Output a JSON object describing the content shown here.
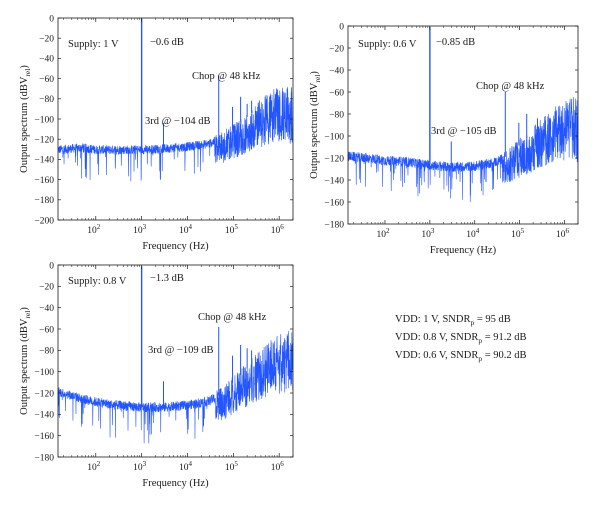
{
  "chart_data": [
    {
      "type": "line",
      "xlabel": "Frequency (Hz)",
      "ylabel": "Output spectrum (dBV",
      "ylabel_sub": "rel",
      "ylabel_end": ")",
      "xscale": "log",
      "xlim": [
        15,
        2000000
      ],
      "ylim": [
        -200,
        0
      ],
      "yticks": [
        "0",
        "−20",
        "−40",
        "−60",
        "−80",
        "−100",
        "−120",
        "−140",
        "−160",
        "−180",
        "−200"
      ],
      "xticks": [
        {
          "base": "10",
          "exp": "2"
        },
        {
          "base": "10",
          "exp": "3"
        },
        {
          "base": "10",
          "exp": "4"
        },
        {
          "base": "10",
          "exp": "5"
        },
        {
          "base": "10",
          "exp": "6"
        }
      ],
      "color": "#2255ff",
      "annotations": [
        "Supply: 1 V",
        "−0.6 dB",
        "Chop @ 48 kHz",
        "3rd @ −104 dB"
      ],
      "series": [
        {
          "floor": [
            [
              15,
              -130
            ],
            [
              50,
              -128
            ],
            [
              100,
              -130
            ],
            [
              300,
              -130
            ],
            [
              1000,
              -130
            ],
            [
              3000,
              -129
            ],
            [
              10000,
              -127
            ],
            [
              30000,
              -124
            ],
            [
              60000,
              -118
            ],
            [
              100000,
              -110
            ],
            [
              200000,
              -98
            ],
            [
              400000,
              -86
            ],
            [
              800000,
              -75
            ],
            [
              1400000,
              -70
            ]
          ],
          "peak": {
            "x": 1000,
            "y": -0.6
          },
          "spurs": [
            {
              "x": 3000,
              "y": -104
            },
            {
              "x": 48000,
              "y": -57
            },
            {
              "x": 96000,
              "y": -88
            },
            {
              "x": 144000,
              "y": -78
            },
            {
              "x": 200000,
              "y": -85
            },
            {
              "x": 250000,
              "y": -82
            }
          ]
        }
      ]
    },
    {
      "type": "line",
      "xlabel": "Frequency (Hz)",
      "ylabel": "Output spectrum (dBV",
      "ylabel_sub": "rel",
      "ylabel_end": ")",
      "xscale": "log",
      "xlim": [
        15,
        2000000
      ],
      "ylim": [
        -180,
        0
      ],
      "yticks": [
        "0",
        "−20",
        "−40",
        "−60",
        "−80",
        "−100",
        "−120",
        "−140",
        "−160",
        "−180"
      ],
      "xticks": [
        {
          "base": "10",
          "exp": "2"
        },
        {
          "base": "10",
          "exp": "3"
        },
        {
          "base": "10",
          "exp": "4"
        },
        {
          "base": "10",
          "exp": "5"
        },
        {
          "base": "10",
          "exp": "6"
        }
      ],
      "color": "#2255ff",
      "annotations": [
        "Supply: 0.6 V",
        "−0.85 dB",
        "Chop @ 48 kHz",
        "3rd @ −105 dB"
      ],
      "series": [
        {
          "floor": [
            [
              15,
              -118
            ],
            [
              50,
              -120
            ],
            [
              100,
              -122
            ],
            [
              300,
              -123
            ],
            [
              1000,
              -126
            ],
            [
              3000,
              -128
            ],
            [
              10000,
              -127
            ],
            [
              30000,
              -123
            ],
            [
              60000,
              -117
            ],
            [
              100000,
              -108
            ],
            [
              200000,
              -97
            ],
            [
              400000,
              -86
            ],
            [
              800000,
              -75
            ],
            [
              1400000,
              -70
            ]
          ],
          "peak": {
            "x": 1000,
            "y": -0.85
          },
          "spurs": [
            {
              "x": 3000,
              "y": -105
            },
            {
              "x": 48000,
              "y": -60
            },
            {
              "x": 96000,
              "y": -88
            },
            {
              "x": 144000,
              "y": -80
            },
            {
              "x": 250000,
              "y": -84
            }
          ]
        }
      ]
    },
    {
      "type": "line",
      "xlabel": "Frequency (Hz)",
      "ylabel": "Output spectrum (dBV",
      "ylabel_sub": "rel",
      "ylabel_end": ")",
      "xscale": "log",
      "xlim": [
        15,
        2000000
      ],
      "ylim": [
        -180,
        0
      ],
      "yticks": [
        "0",
        "−20",
        "−40",
        "−60",
        "−80",
        "−100",
        "−120",
        "−140",
        "−160",
        "−180"
      ],
      "xticks": [
        {
          "base": "10",
          "exp": "2"
        },
        {
          "base": "10",
          "exp": "3"
        },
        {
          "base": "10",
          "exp": "4"
        },
        {
          "base": "10",
          "exp": "5"
        },
        {
          "base": "10",
          "exp": "6"
        }
      ],
      "color": "#2255ff",
      "annotations": [
        "Supply: 0.8 V",
        "−1.3 dB",
        "Chop @ 48 kHz",
        "3rd @ −109 dB"
      ],
      "series": [
        {
          "floor": [
            [
              15,
              -118
            ],
            [
              50,
              -125
            ],
            [
              100,
              -128
            ],
            [
              300,
              -131
            ],
            [
              1000,
              -133
            ],
            [
              3000,
              -133
            ],
            [
              10000,
              -131
            ],
            [
              30000,
              -127
            ],
            [
              60000,
              -120
            ],
            [
              100000,
              -110
            ],
            [
              200000,
              -97
            ],
            [
              400000,
              -85
            ],
            [
              800000,
              -73
            ],
            [
              1400000,
              -68
            ]
          ],
          "peak": {
            "x": 1000,
            "y": -1.3
          },
          "spurs": [
            {
              "x": 3000,
              "y": -109
            },
            {
              "x": 48000,
              "y": -58
            },
            {
              "x": 96000,
              "y": -85
            },
            {
              "x": 144000,
              "y": -75
            },
            {
              "x": 200000,
              "y": -78
            },
            {
              "x": 250000,
              "y": -80
            }
          ]
        }
      ]
    }
  ],
  "summary": [
    {
      "prefix": "VDD: 1 V, SNDR",
      "sub": "p",
      "suffix": " = 95 dB"
    },
    {
      "prefix": "VDD: 0.8 V, SNDR",
      "sub": "p",
      "suffix": " = 91.2 dB"
    },
    {
      "prefix": "VDD: 0.6 V, SNDR",
      "sub": "p",
      "suffix": " = 90.2 dB"
    }
  ]
}
